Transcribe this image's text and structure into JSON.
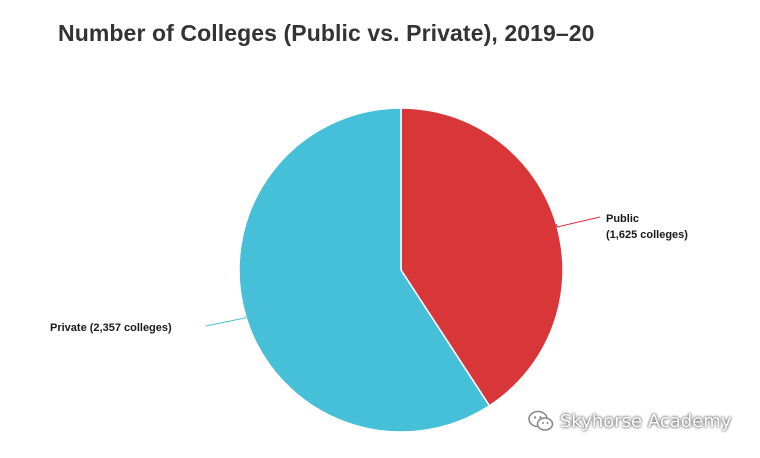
{
  "chart_data": {
    "type": "pie",
    "title": "Number of Colleges (Public vs. Private), 2019–20",
    "slices": [
      {
        "label": "Public",
        "sublabel": "(1,625 colleges)",
        "value": 1625,
        "color": "#d9363a"
      },
      {
        "label": "Private (2,357 colleges)",
        "sublabel": "",
        "value": 2357,
        "color": "#46bfd9"
      }
    ],
    "start_angle_deg": 0,
    "direction": "clockwise",
    "legend": "none"
  },
  "watermark": {
    "text": "Skyhorse Academy",
    "icon": "wechat-icon"
  }
}
